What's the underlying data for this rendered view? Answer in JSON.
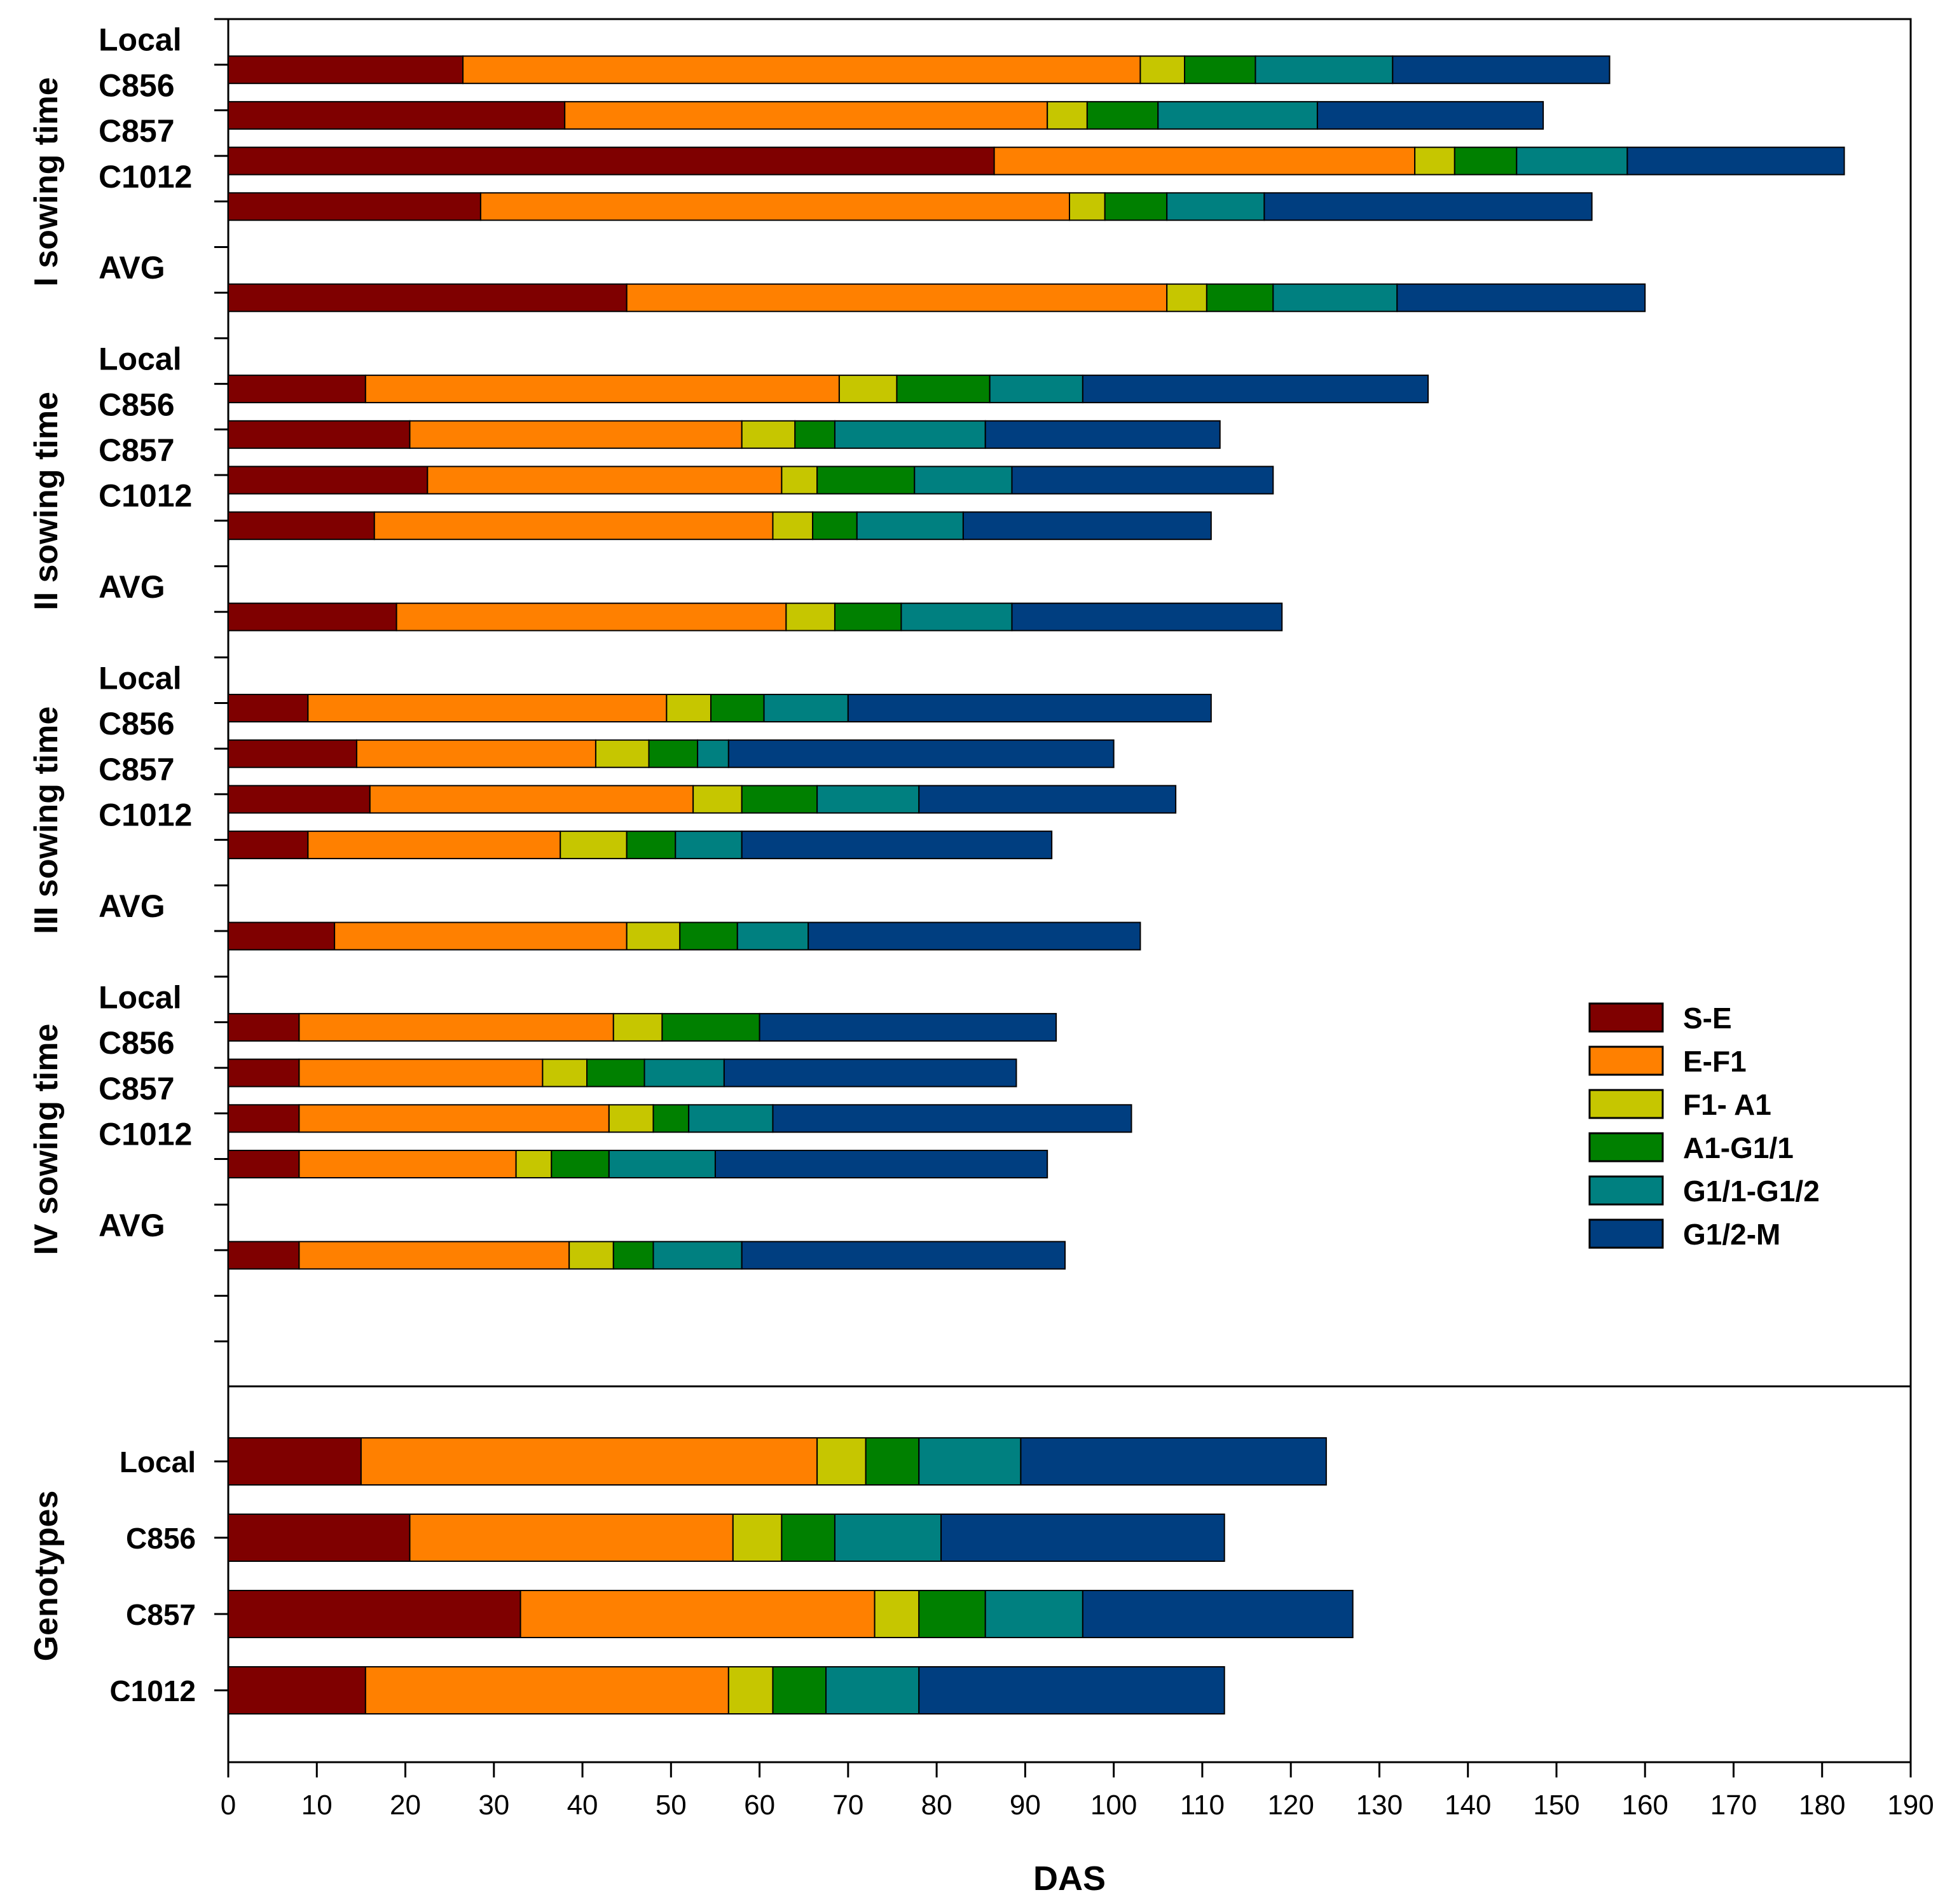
{
  "chart_data": {
    "type": "bar",
    "orientation": "horizontal",
    "stacked": true,
    "xlabel": "DAS",
    "xlim": [
      0,
      190
    ],
    "xticks": [
      0,
      10,
      20,
      30,
      40,
      50,
      60,
      70,
      80,
      90,
      100,
      110,
      120,
      130,
      140,
      150,
      160,
      170,
      180,
      190
    ],
    "legend": {
      "placement": "right",
      "entries": [
        "S-E",
        "E-F1",
        "F1- A1",
        "A1-G1/1",
        "G1/1-G1/2",
        "G1/2-M"
      ]
    },
    "colors": [
      "#7f0000",
      "#ff8000",
      "#c6c600",
      "#008000",
      "#008080",
      "#003e80"
    ],
    "panels": [
      {
        "groups": [
          {
            "name": "I sowing time",
            "rows": [
              {
                "label": "Local",
                "values": [
                  26.5,
                  76.5,
                  5,
                  8,
                  15.5,
                  24.5
                ]
              },
              {
                "label": "C856",
                "values": [
                  38,
                  54.5,
                  4.5,
                  8,
                  18,
                  25.5
                ]
              },
              {
                "label": "C857",
                "values": [
                  86.5,
                  47.5,
                  4.5,
                  7,
                  12.5,
                  24.5
                ]
              },
              {
                "label": "C1012",
                "values": [
                  28.5,
                  66.5,
                  4,
                  7,
                  11,
                  37
                ]
              },
              {
                "label": "AVG",
                "values": [
                  45,
                  61,
                  4.5,
                  7.5,
                  14,
                  28
                ]
              }
            ]
          },
          {
            "name": "II sowing time",
            "rows": [
              {
                "label": "Local",
                "values": [
                  15.5,
                  53.5,
                  6.5,
                  10.5,
                  10.5,
                  39
                ]
              },
              {
                "label": "C856",
                "values": [
                  20.5,
                  37.5,
                  6,
                  4.5,
                  17,
                  26.5
                ]
              },
              {
                "label": "C857",
                "values": [
                  22.5,
                  40,
                  4,
                  11,
                  11,
                  29.5
                ]
              },
              {
                "label": "C1012",
                "values": [
                  16.5,
                  45,
                  4.5,
                  5,
                  12,
                  28
                ]
              },
              {
                "label": "AVG",
                "values": [
                  19,
                  44,
                  5.5,
                  7.5,
                  12.5,
                  30.5
                ]
              }
            ]
          },
          {
            "name": "III sowing time",
            "rows": [
              {
                "label": "Local",
                "values": [
                  9,
                  40.5,
                  5,
                  6,
                  9.5,
                  41
                ]
              },
              {
                "label": "C856",
                "values": [
                  14.5,
                  27,
                  6,
                  5.5,
                  3.5,
                  43.5
                ]
              },
              {
                "label": "C857",
                "values": [
                  16,
                  36.5,
                  5.5,
                  8.5,
                  11.5,
                  29
                ]
              },
              {
                "label": "C1012",
                "values": [
                  9,
                  28.5,
                  7.5,
                  5.5,
                  7.5,
                  35
                ]
              },
              {
                "label": "AVG",
                "values": [
                  12,
                  33,
                  6,
                  6.5,
                  8,
                  37.5
                ]
              }
            ]
          },
          {
            "name": "IV sowing time",
            "rows": [
              {
                "label": "Local",
                "values": [
                  8,
                  35.5,
                  5.5,
                  11,
                  0,
                  33.5
                ]
              },
              {
                "label": "C856",
                "values": [
                  8,
                  27.5,
                  5,
                  6.5,
                  9,
                  33
                ]
              },
              {
                "label": "C857",
                "values": [
                  8,
                  35,
                  5,
                  4,
                  9.5,
                  40.5
                ]
              },
              {
                "label": "C1012",
                "values": [
                  8,
                  24.5,
                  4,
                  6.5,
                  12,
                  37.5
                ]
              },
              {
                "label": "AVG",
                "values": [
                  8,
                  30.5,
                  5,
                  4.5,
                  10,
                  36.5
                ]
              }
            ]
          }
        ]
      },
      {
        "groups": [
          {
            "name": "Genotypes",
            "rows": [
              {
                "label": "Local",
                "values": [
                  15,
                  51.5,
                  5.5,
                  6,
                  11.5,
                  34.5
                ]
              },
              {
                "label": "C856",
                "values": [
                  20.5,
                  36.5,
                  5.5,
                  6,
                  12,
                  32
                ]
              },
              {
                "label": "C857",
                "values": [
                  33,
                  40,
                  5,
                  7.5,
                  11,
                  30.5
                ]
              },
              {
                "label": "C1012",
                "values": [
                  15.5,
                  41,
                  5,
                  6,
                  10.5,
                  34.5
                ]
              }
            ]
          }
        ]
      }
    ]
  }
}
